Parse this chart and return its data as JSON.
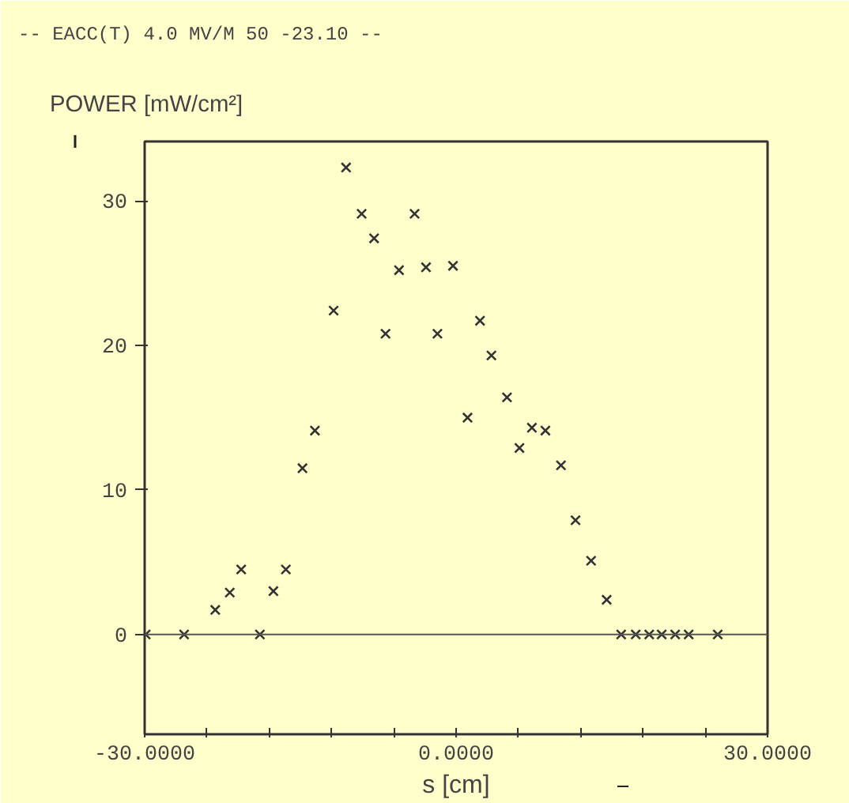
{
  "chart_data": {
    "type": "scatter",
    "title": "--  EACC(T) 4.0 MV/M 50  -23.10  --",
    "ylabel": "POWER [mW/cm²]",
    "xlabel": "s [cm]",
    "x": [
      -29.9,
      -26.2,
      -23.2,
      -21.8,
      -20.7,
      -18.9,
      -17.6,
      -16.4,
      -14.8,
      -13.6,
      -11.8,
      -10.6,
      -9.1,
      -7.9,
      -6.8,
      -5.5,
      -4.0,
      -2.9,
      -1.8,
      -0.3,
      1.1,
      2.3,
      3.4,
      4.9,
      6.1,
      7.3,
      8.6,
      10.1,
      11.5,
      13.0,
      14.5,
      15.9,
      17.3,
      18.6,
      19.8,
      21.1,
      22.4,
      25.2
    ],
    "series": [
      {
        "color": "#333333",
        "values": [
          0,
          0,
          1.7,
          2.9,
          4.5,
          0,
          3.0,
          4.5,
          11.5,
          14.1,
          22.4,
          32.3,
          29.1,
          27.4,
          20.8,
          25.2,
          29.1,
          25.4,
          20.8,
          25.5,
          15.0,
          21.7,
          19.3,
          16.4,
          12.9,
          14.3,
          14.1,
          11.7,
          7.9,
          5.1,
          2.4,
          0,
          0,
          0,
          0,
          0,
          0,
          0
        ]
      }
    ],
    "marker": "cross",
    "xlim": [
      -30,
      30
    ],
    "xticks": [
      {
        "value": -30,
        "label": "-30.0000"
      },
      {
        "value": -24,
        "label": null
      },
      {
        "value": -18,
        "label": null
      },
      {
        "value": -12,
        "label": null
      },
      {
        "value": -6,
        "label": null
      },
      {
        "value": 0,
        "label": "0.0000"
      },
      {
        "value": 6,
        "label": null
      },
      {
        "value": 12,
        "label": null
      },
      {
        "value": 18,
        "label": null
      },
      {
        "value": 24,
        "label": null
      },
      {
        "value": 30,
        "label": "30.0000"
      }
    ],
    "ylim": [
      -6.9,
      34.1
    ],
    "yticks": [
      0,
      10,
      20,
      30
    ],
    "ref_lines": [
      {
        "axis": "y",
        "value": 0,
        "color": "#555555"
      }
    ],
    "grid": false
  }
}
